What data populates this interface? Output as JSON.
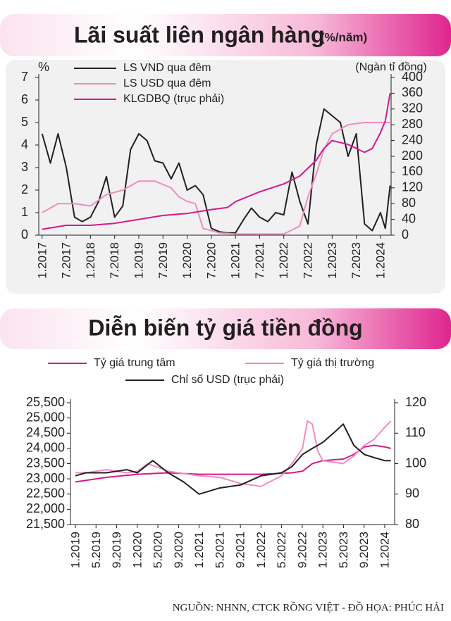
{
  "chart_data": [
    {
      "type": "line",
      "title": "Lãi suất liên ngân hàng",
      "subtitle": "(%/năm)",
      "y_label": "%",
      "y2_label": "(Ngàn tỉ đồng)",
      "xlim": [
        2016.93,
        2024.22
      ],
      "ylim": [
        0,
        7
      ],
      "y2lim": [
        0,
        400
      ],
      "xticks": [
        {
          "value": 2017,
          "label": "1.2017"
        },
        {
          "value": 2017.5,
          "label": "7.2017"
        },
        {
          "value": 2018,
          "label": "1.2018"
        },
        {
          "value": 2018.5,
          "label": "7.2018"
        },
        {
          "value": 2019,
          "label": "1.2019"
        },
        {
          "value": 2019.5,
          "label": "7.2019"
        },
        {
          "value": 2020,
          "label": "1.2020"
        },
        {
          "value": 2020.5,
          "label": "7.2020"
        },
        {
          "value": 2021,
          "label": "1.2021"
        },
        {
          "value": 2021.5,
          "label": "7.2021"
        },
        {
          "value": 2022,
          "label": "1.2022"
        },
        {
          "value": 2022.5,
          "label": "7.2022"
        },
        {
          "value": 2023,
          "label": "1.2023"
        },
        {
          "value": 2023.5,
          "label": "7.2023"
        },
        {
          "value": 2024,
          "label": "1.2024"
        }
      ],
      "yticks": [
        0,
        1,
        2,
        3,
        4,
        5,
        6,
        7
      ],
      "y2ticks": [
        0,
        40,
        80,
        120,
        160,
        200,
        240,
        280,
        320,
        360,
        400
      ],
      "series": [
        {
          "name": "LS VND qua đêm",
          "color": "#231f20",
          "x": [
            2017.0,
            2017.17,
            2017.33,
            2017.5,
            2017.67,
            2017.83,
            2018.0,
            2018.17,
            2018.33,
            2018.5,
            2018.67,
            2018.83,
            2019.0,
            2019.17,
            2019.33,
            2019.5,
            2019.67,
            2019.83,
            2020.0,
            2020.17,
            2020.33,
            2020.5,
            2020.67,
            2020.83,
            2021.0,
            2021.17,
            2021.33,
            2021.5,
            2021.67,
            2021.83,
            2022.0,
            2022.17,
            2022.33,
            2022.5,
            2022.67,
            2022.83,
            2023.0,
            2023.17,
            2023.33,
            2023.5,
            2023.67,
            2023.83,
            2024.0,
            2024.1,
            2024.2
          ],
          "values": [
            4.5,
            3.2,
            4.5,
            3.0,
            0.8,
            0.6,
            0.8,
            1.5,
            2.6,
            0.8,
            1.3,
            3.8,
            4.5,
            4.2,
            3.3,
            3.2,
            2.5,
            3.2,
            2.0,
            2.2,
            1.8,
            0.3,
            0.15,
            0.1,
            0.1,
            0.7,
            1.2,
            0.8,
            0.6,
            1.0,
            0.9,
            2.8,
            1.5,
            0.5,
            4.0,
            5.6,
            5.3,
            5.0,
            3.5,
            4.5,
            0.5,
            0.2,
            1.0,
            0.3,
            2.2
          ]
        },
        {
          "name": "LS USD qua đêm",
          "color": "#f08cc0",
          "x": [
            2017.0,
            2017.33,
            2017.67,
            2018.0,
            2018.33,
            2018.67,
            2019.0,
            2019.33,
            2019.67,
            2019.83,
            2020.0,
            2020.17,
            2020.33,
            2020.67,
            2021.0,
            2021.5,
            2022.0,
            2022.33,
            2022.5,
            2022.67,
            2022.83,
            2023.0,
            2023.33,
            2023.67,
            2024.0,
            2024.2
          ],
          "values": [
            1.0,
            1.4,
            1.4,
            1.3,
            1.8,
            2.0,
            2.4,
            2.4,
            2.1,
            1.7,
            1.5,
            1.4,
            0.3,
            0.1,
            0.05,
            0.05,
            0.05,
            0.4,
            1.7,
            2.7,
            3.8,
            4.5,
            4.9,
            5.0,
            5.0,
            5.0
          ]
        },
        {
          "name": "KLGDBQ (trục phải)",
          "color": "#d6198a",
          "axis": "y2",
          "x": [
            2017.0,
            2017.5,
            2018.0,
            2018.5,
            2019.0,
            2019.5,
            2020.0,
            2020.5,
            2020.83,
            2021.0,
            2021.5,
            2022.0,
            2022.33,
            2022.67,
            2022.83,
            2023.0,
            2023.33,
            2023.67,
            2023.83,
            2024.0,
            2024.1,
            2024.2
          ],
          "values": [
            15,
            25,
            25,
            30,
            40,
            50,
            55,
            65,
            70,
            85,
            110,
            130,
            150,
            190,
            220,
            240,
            230,
            210,
            220,
            260,
            290,
            360
          ]
        }
      ]
    },
    {
      "type": "line",
      "title": "Diễn biến tỷ giá tiền đồng",
      "xlim": [
        2018.92,
        2024.16
      ],
      "ylim": [
        21500,
        25500
      ],
      "y2lim": [
        80,
        120
      ],
      "xticks": [
        {
          "value": 2019,
          "label": "1.2019"
        },
        {
          "value": 2019.333,
          "label": "5.2019"
        },
        {
          "value": 2019.667,
          "label": "9.2019"
        },
        {
          "value": 2020,
          "label": "1.2020"
        },
        {
          "value": 2020.333,
          "label": "5.2020"
        },
        {
          "value": 2020.667,
          "label": "9.2020"
        },
        {
          "value": 2021,
          "label": "1.2021"
        },
        {
          "value": 2021.333,
          "label": "5.2021"
        },
        {
          "value": 2021.667,
          "label": "9.2021"
        },
        {
          "value": 2022,
          "label": "1.2022"
        },
        {
          "value": 2022.333,
          "label": "5.2022"
        },
        {
          "value": 2022.667,
          "label": "9.2022"
        },
        {
          "value": 2023,
          "label": "1.2023"
        },
        {
          "value": 2023.333,
          "label": "5.2023"
        },
        {
          "value": 2023.667,
          "label": "9.2023"
        },
        {
          "value": 2024,
          "label": "1.2024"
        }
      ],
      "yticks": [
        {
          "value": 21500,
          "label": "21,500"
        },
        {
          "value": 22000,
          "label": "22,000"
        },
        {
          "value": 22500,
          "label": "22,500"
        },
        {
          "value": 23000,
          "label": "23,000"
        },
        {
          "value": 23500,
          "label": "23,500"
        },
        {
          "value": 24000,
          "label": "24,000"
        },
        {
          "value": 24500,
          "label": "24,500"
        },
        {
          "value": 25000,
          "label": "25,000"
        },
        {
          "value": 25500,
          "label": "25,500"
        }
      ],
      "y2ticks": [
        80,
        90,
        100,
        110,
        120
      ],
      "series": [
        {
          "name": "Tỷ giá trung tâm",
          "color": "#d6198a",
          "x": [
            2019.0,
            2019.5,
            2020.0,
            2020.5,
            2021.0,
            2021.5,
            2022.0,
            2022.5,
            2022.67,
            2022.83,
            2023.0,
            2023.33,
            2023.5,
            2023.67,
            2023.83,
            2024.0,
            2024.1
          ],
          "values": [
            22900,
            23050,
            23150,
            23200,
            23150,
            23150,
            23150,
            23200,
            23250,
            23500,
            23600,
            23650,
            23800,
            24050,
            24100,
            24050,
            24000
          ]
        },
        {
          "name": "Tỷ giá thị trường",
          "color": "#f08cc0",
          "x": [
            2019.0,
            2019.17,
            2019.5,
            2019.83,
            2020.0,
            2020.17,
            2020.5,
            2020.83,
            2021.0,
            2021.33,
            2021.67,
            2022.0,
            2022.33,
            2022.5,
            2022.67,
            2022.75,
            2022.83,
            2022.92,
            2023.0,
            2023.33,
            2023.5,
            2023.67,
            2023.83,
            2024.0,
            2024.1
          ],
          "values": [
            23200,
            23200,
            23300,
            23200,
            23250,
            23500,
            23250,
            23150,
            23100,
            23050,
            22850,
            22750,
            23100,
            23500,
            24000,
            24900,
            24800,
            23900,
            23600,
            23500,
            23750,
            24100,
            24300,
            24700,
            24900
          ]
        },
        {
          "name": "Chỉ số USD (trục phải)",
          "color": "#231f20",
          "axis": "y2",
          "x": [
            2019.0,
            2019.17,
            2019.5,
            2019.83,
            2020.0,
            2020.25,
            2020.5,
            2020.75,
            2021.0,
            2021.33,
            2021.67,
            2022.0,
            2022.33,
            2022.5,
            2022.67,
            2022.83,
            2023.0,
            2023.17,
            2023.33,
            2023.5,
            2023.67,
            2023.83,
            2024.0,
            2024.1
          ],
          "values": [
            96,
            97,
            97,
            98,
            97,
            101,
            97,
            94,
            90,
            92,
            93,
            96,
            97,
            99,
            103,
            105,
            107,
            110,
            113,
            106,
            103,
            102,
            101,
            101
          ]
        }
      ]
    }
  ],
  "source": "NGUỒN: NHNN, CTCK RỒNG VIỆT - ĐỒ HỌA: PHÚC HẢI"
}
